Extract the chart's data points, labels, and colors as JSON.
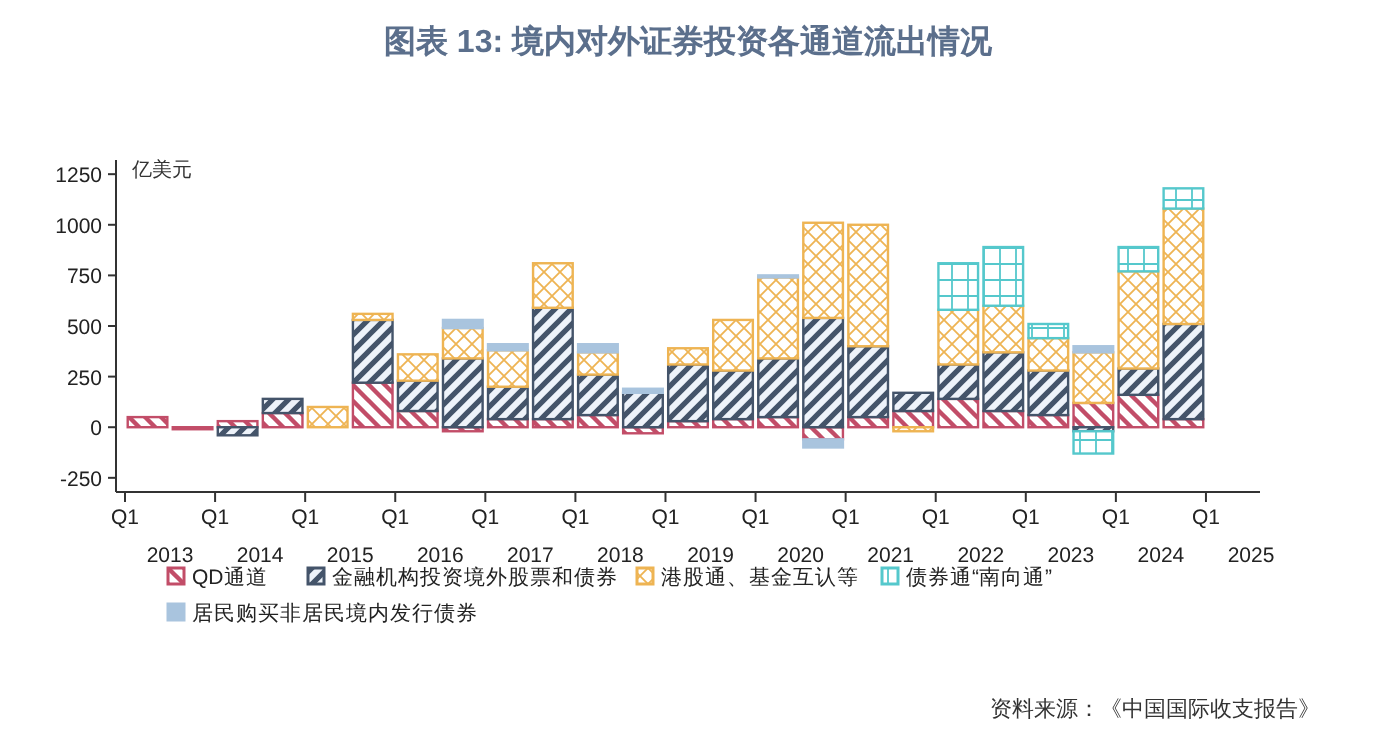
{
  "chart_data": {
    "type": "bar",
    "stacked": true,
    "title": "图表 13: 境内对外证券投资各通道流出情况",
    "ylabel": "亿美元",
    "legend": "bottom",
    "annotations": [
      "Q1",
      "Q1",
      "Q1",
      "Q1",
      "Q1",
      "Q1",
      "Q1",
      "Q1",
      "Q1",
      "Q1",
      "Q1",
      "Q1",
      "Q1",
      "资料来源：《中国国际收支报告》"
    ],
    "x": [
      2013.25,
      2013.75,
      2014.25,
      2014.75,
      2015.25,
      2015.75,
      2016.25,
      2016.75,
      2017.25,
      2017.75,
      2018.25,
      2018.75,
      2019.25,
      2019.75,
      2020.25,
      2020.75,
      2021.25,
      2021.75,
      2022.25,
      2022.75,
      2023.25,
      2023.75,
      2024.25,
      2024.75
    ],
    "xlim": [
      2012.9,
      2025.6
    ],
    "ylim": [
      -320,
      1320
    ],
    "xticks": [
      {
        "value": 2013.5,
        "label": "2013"
      },
      {
        "value": 2014.5,
        "label": "2014"
      },
      {
        "value": 2015.5,
        "label": "2015"
      },
      {
        "value": 2016.5,
        "label": "2016"
      },
      {
        "value": 2017.5,
        "label": "2017"
      },
      {
        "value": 2018.5,
        "label": "2018"
      },
      {
        "value": 2019.5,
        "label": "2019"
      },
      {
        "value": 2020.5,
        "label": "2020"
      },
      {
        "value": 2021.5,
        "label": "2021"
      },
      {
        "value": 2022.5,
        "label": "2022"
      },
      {
        "value": 2023.5,
        "label": "2023"
      },
      {
        "value": 2024.5,
        "label": "2024"
      },
      {
        "value": 2025.5,
        "label": "2025"
      }
    ],
    "yticks": [
      -250,
      0,
      250,
      500,
      750,
      1000,
      1250
    ],
    "series": [
      {
        "name": "QD通道",
        "color": "#c24d68",
        "values": [
          50,
          -10,
          30,
          70,
          null,
          220,
          80,
          -20,
          40,
          40,
          60,
          -30,
          30,
          40,
          50,
          -60,
          50,
          80,
          140,
          80,
          60,
          120,
          160,
          40
        ]
      },
      {
        "name": "金融机构投资境外股票和债券",
        "color": "#44546a",
        "values": [
          null,
          null,
          -40,
          70,
          null,
          310,
          150,
          340,
          160,
          550,
          200,
          170,
          280,
          240,
          290,
          540,
          350,
          90,
          170,
          290,
          220,
          -20,
          130,
          470
        ]
      },
      {
        "name": "港股通、基金互认等",
        "color": "#eeb453",
        "values": [
          null,
          null,
          null,
          null,
          100,
          30,
          130,
          150,
          180,
          220,
          110,
          null,
          80,
          250,
          400,
          470,
          600,
          -20,
          270,
          230,
          160,
          250,
          480,
          570
        ]
      },
      {
        "name": "债券通“南向通”",
        "color": "#55c8cc",
        "values": [
          null,
          null,
          null,
          null,
          null,
          null,
          null,
          null,
          null,
          null,
          null,
          null,
          null,
          null,
          null,
          null,
          null,
          null,
          230,
          290,
          70,
          -110,
          120,
          100
        ]
      },
      {
        "name": "居民购买非居民境内发行债券",
        "color": "#a9c4de",
        "values": [
          null,
          null,
          null,
          null,
          null,
          null,
          null,
          40,
          30,
          null,
          40,
          20,
          null,
          null,
          10,
          -40,
          null,
          null,
          null,
          null,
          null,
          30,
          null,
          null
        ]
      }
    ]
  }
}
